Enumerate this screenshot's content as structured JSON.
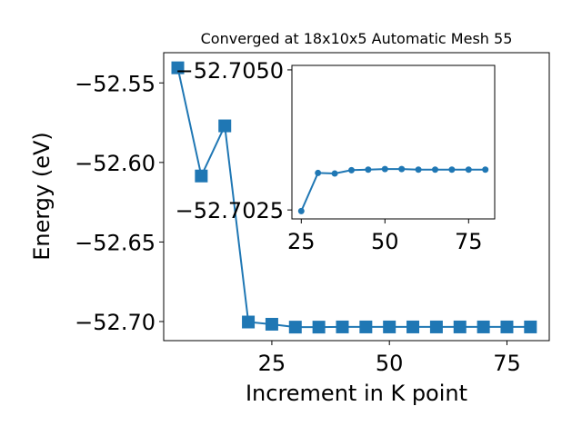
{
  "chart_data": [
    {
      "type": "line",
      "title": "Converged at 18x10x5 Automatic Mesh 55",
      "xlabel": "Increment in K point",
      "ylabel": "Energy (eV)",
      "xlim": [
        2,
        84
      ],
      "ylim": [
        -52.712,
        -52.531
      ],
      "xticks": [
        25,
        50,
        75
      ],
      "xtick_labels": [
        "25",
        "50",
        "75"
      ],
      "yticks": [
        -52.55,
        -52.6,
        -52.65,
        -52.7
      ],
      "ytick_labels": [
        "−52.55",
        "−52.60",
        "−52.65",
        "−52.70"
      ],
      "grid": false,
      "legend": "none",
      "marker": "square",
      "color": "#1f77b4",
      "series": [
        {
          "x": [
            5,
            10,
            15,
            20,
            25,
            30,
            35,
            40,
            45,
            50,
            55,
            60,
            65,
            70,
            75,
            80
          ],
          "values": [
            -52.5405,
            -52.6085,
            -52.577,
            -52.7003,
            -52.7017,
            -52.7035,
            -52.7035,
            -52.7034,
            -52.7034,
            -52.7034,
            -52.7034,
            -52.7034,
            -52.7034,
            -52.7034,
            -52.7034,
            -52.7034
          ]
        }
      ]
    },
    {
      "type": "line",
      "title": "",
      "xlabel": "",
      "ylabel": "",
      "xlim": [
        22.2,
        82.8
      ],
      "ylim": [
        -52.70234,
        -52.70508
      ],
      "xticks": [
        25,
        50,
        75
      ],
      "xtick_labels": [
        "25",
        "50",
        "75"
      ],
      "yticks": [
        -52.705,
        -52.7025
      ],
      "ytick_labels": [
        "−52.7050",
        "−52.7025"
      ],
      "grid": false,
      "legend": "none",
      "marker": "circle",
      "color": "#1f77b4",
      "series": [
        {
          "x": [
            25,
            30,
            35,
            40,
            45,
            50,
            55,
            60,
            65,
            70,
            75,
            80
          ],
          "values": [
            -52.70248,
            -52.70316,
            -52.70315,
            -52.70321,
            -52.70322,
            -52.70323,
            -52.70323,
            -52.70322,
            -52.70322,
            -52.70322,
            -52.70322,
            -52.70322
          ]
        }
      ]
    }
  ]
}
